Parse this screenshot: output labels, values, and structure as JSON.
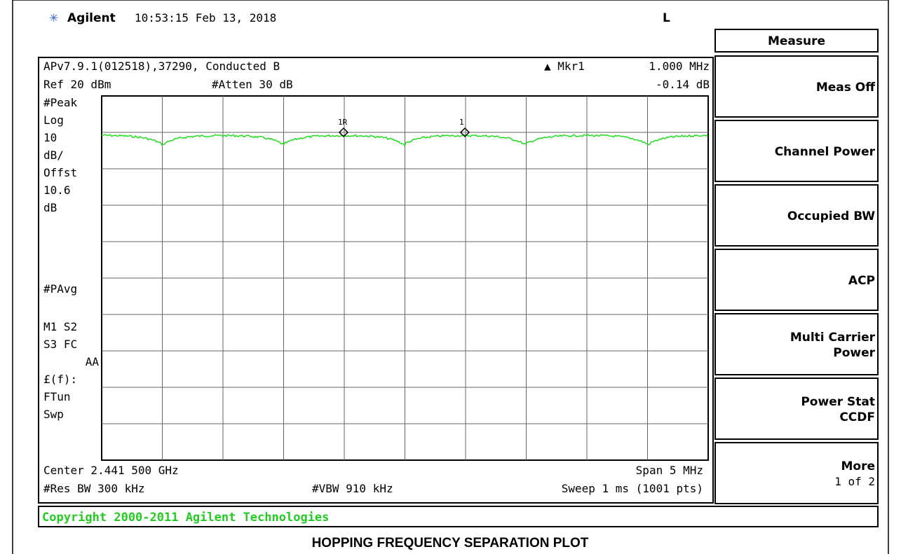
{
  "header": {
    "brand": "Agilent",
    "time": "10:53:15  Feb 13, 2018",
    "mode": "L"
  },
  "info": {
    "line1": "APv7.9.1(012518),37290, Conducted B",
    "marker_label": "▲ Mkr1",
    "marker_freq": "1.000 MHz",
    "ref": "Ref 20 dBm",
    "atten": "#Atten 30 dB",
    "marker_value": "-0.14 dB"
  },
  "left_labels": [
    "#Peak",
    "Log",
    "10",
    "dB/",
    "Offst",
    "10.6",
    "dB",
    "#PAvg",
    "M1  S2",
    "S3  FC",
    "AA",
    "£(f):",
    "FTun",
    "Swp"
  ],
  "markers": [
    "1R",
    "1"
  ],
  "bottom": {
    "center": "Center 2.441 500 GHz",
    "span": "Span 5 MHz",
    "res_bw": "#Res BW 300 kHz",
    "vbw": "#VBW 910 kHz",
    "sweep": "Sweep 1 ms (1001 pts)"
  },
  "softkeys": {
    "title": "Measure",
    "keys": [
      [
        "Meas Off"
      ],
      [
        "Channel Power"
      ],
      [
        "Occupied BW"
      ],
      [
        "ACP"
      ],
      [
        "Multi Carrier",
        "Power"
      ],
      [
        "Power Stat",
        "CCDF"
      ],
      [
        "More",
        "1 of 2"
      ]
    ]
  },
  "copyright": "Copyright 2000-2011 Agilent Technologies",
  "caption": "HOPPING FREQUENCY SEPARATION PLOT"
}
